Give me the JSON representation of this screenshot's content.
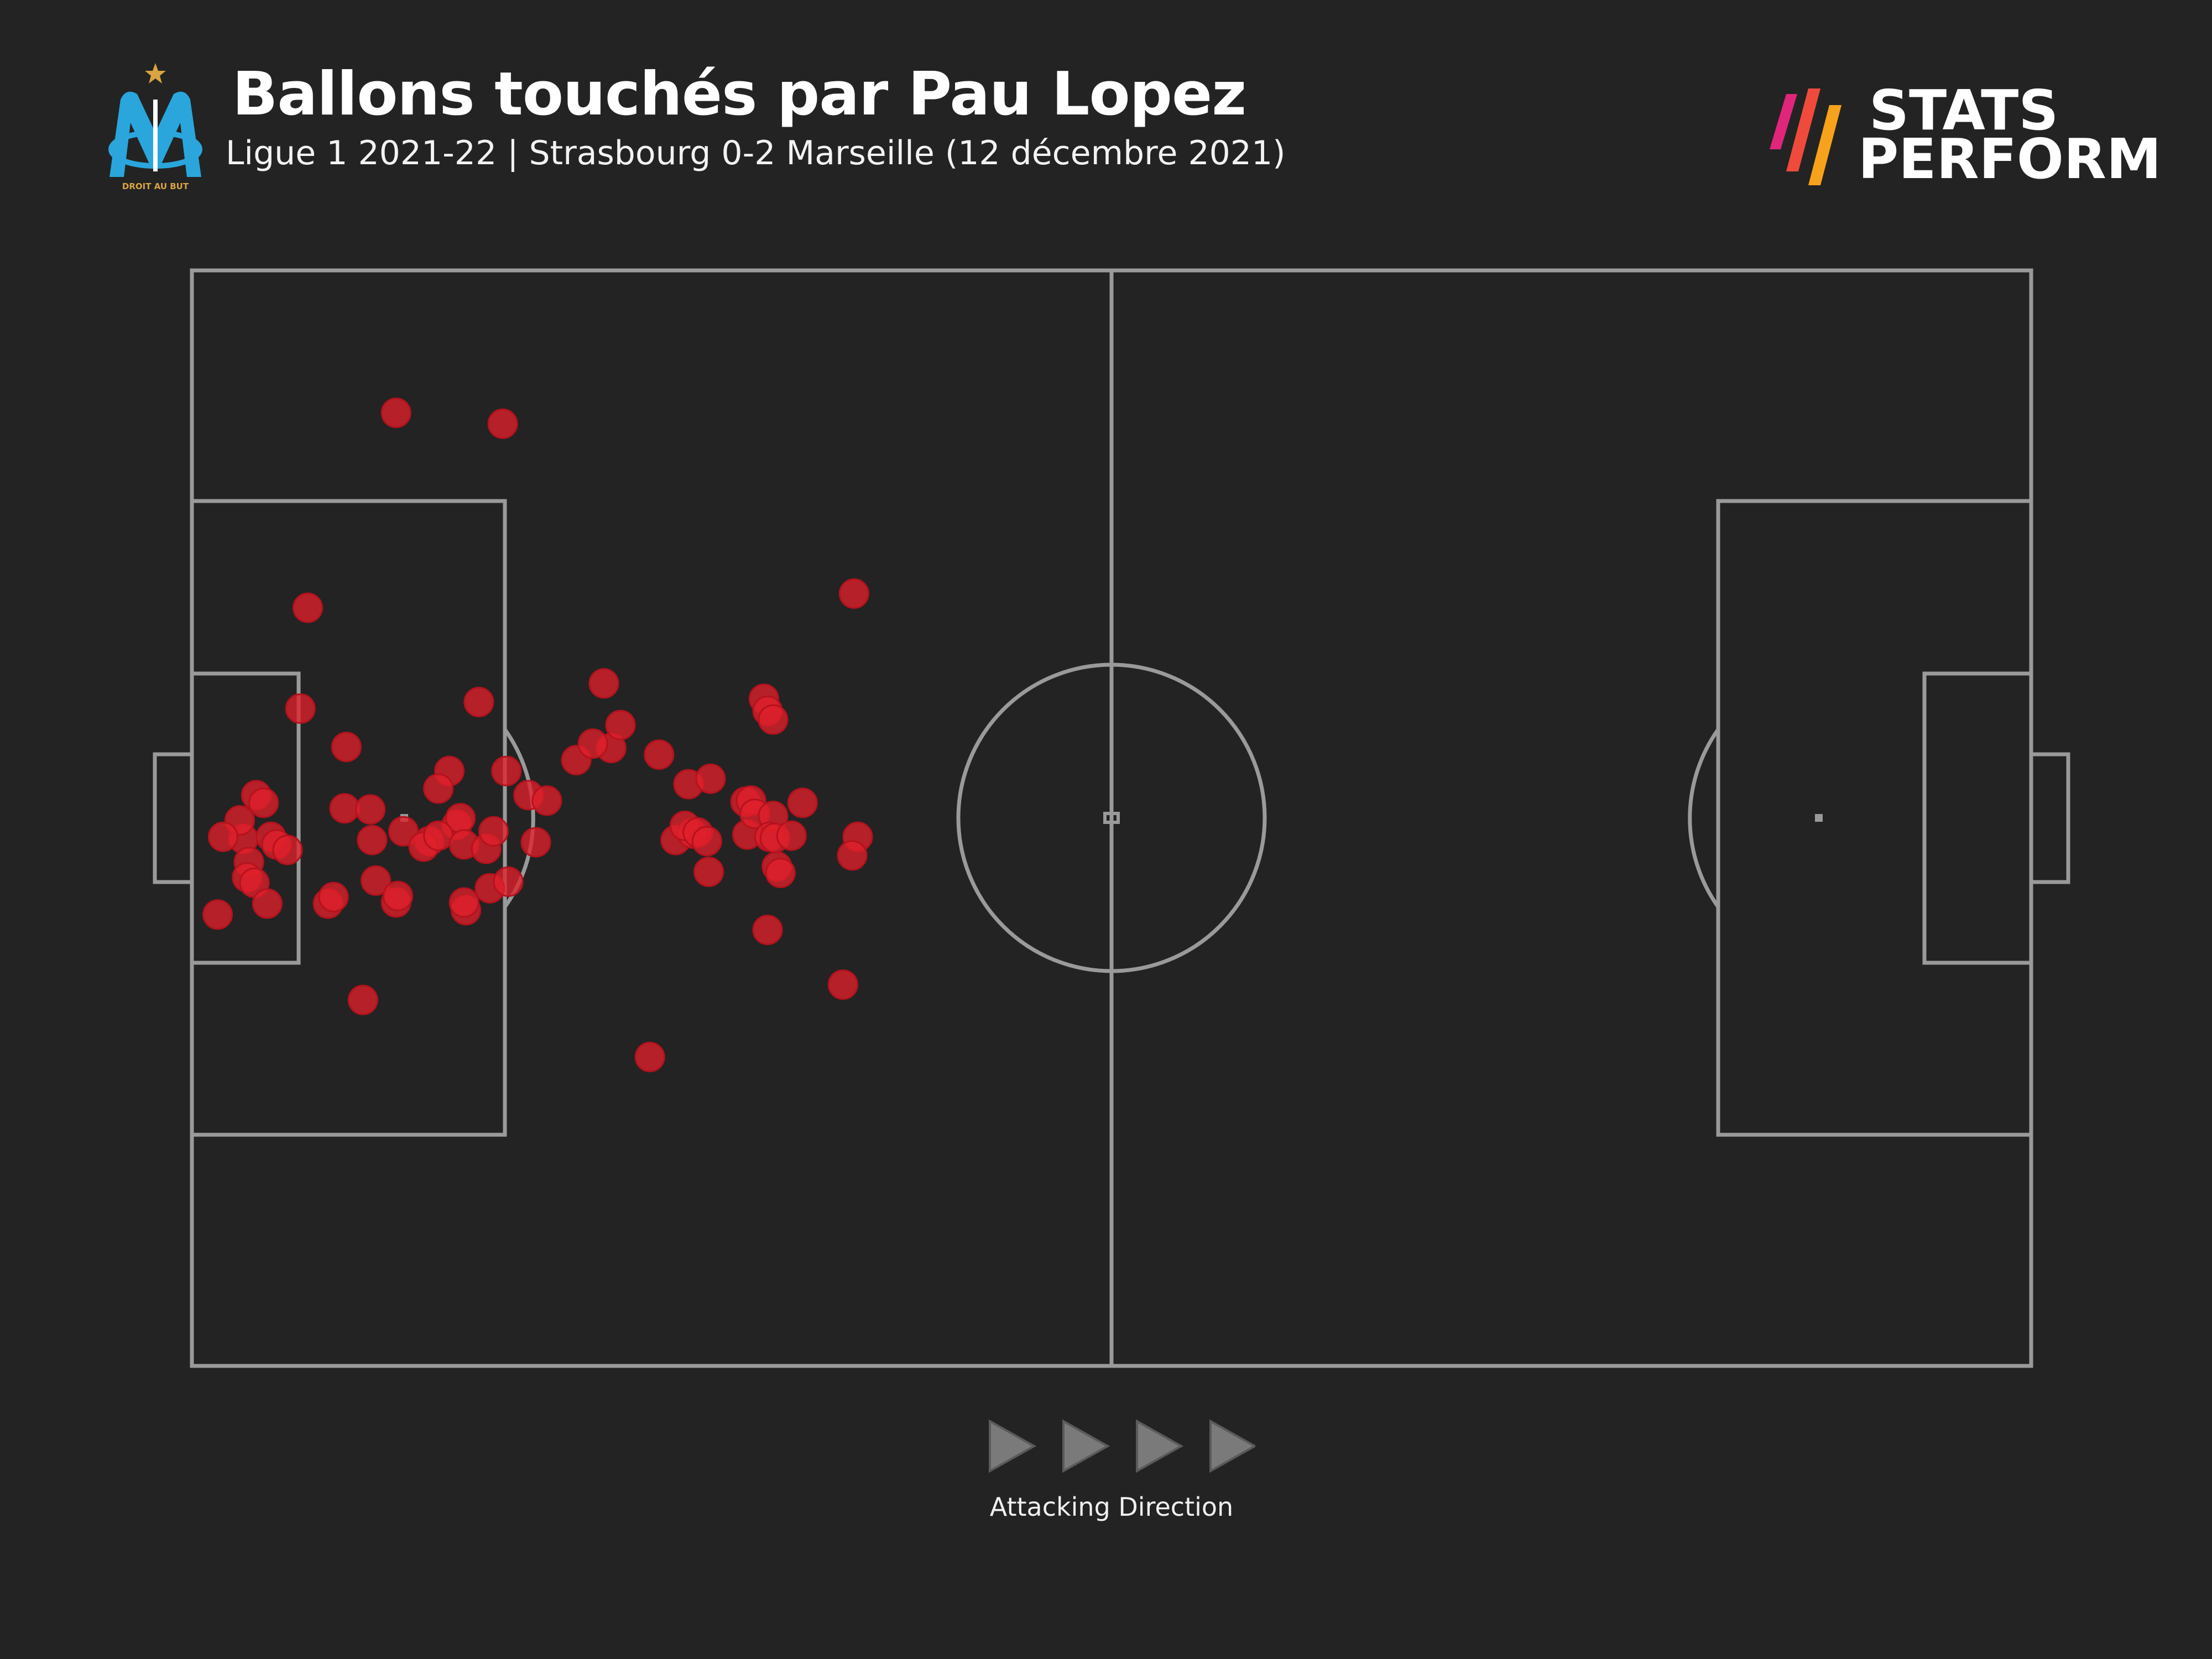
{
  "header": {
    "title": "Ballons touchés par Pau Lopez",
    "subtitle": "Ligue 1 2021-22 | Strasbourg 0-2 Marseille (12 décembre 2021)",
    "club_logo_text": "DROIT AU BUT",
    "club_logo_icon": "olympique-marseille-crest-icon"
  },
  "brand": {
    "line1": "STATS",
    "line2": "PERFORM",
    "mark_icon": "stats-perform-stripes-icon",
    "stripe_colors": [
      "#e0257a",
      "#f04a3c",
      "#f7a21b"
    ]
  },
  "footer": {
    "direction_label": "Attacking Direction",
    "arrow_icon": "play-triangle-icon",
    "arrow_count": 4
  },
  "colors": {
    "background": "#232323",
    "pitch_lines": "#9a9a9a",
    "touch_marker": "#e0202c",
    "arrow": "#7a7a7a"
  },
  "chart_data": {
    "type": "scatter",
    "title": "Ballons touchés par Pau Lopez",
    "subtitle": "Ligue 1 2021-22 | Strasbourg 0-2 Marseille (12 décembre 2021)",
    "pitch": {
      "length": 100,
      "width": 100,
      "attacking_direction": "left-to-right",
      "grid": false
    },
    "series": [
      {
        "marker_color": "#e0202c",
        "points": [
          {
            "x": 11.1,
            "y": 87.0
          },
          {
            "x": 16.9,
            "y": 86.0
          },
          {
            "x": 6.3,
            "y": 69.2
          },
          {
            "x": 5.9,
            "y": 60.0
          },
          {
            "x": 15.6,
            "y": 60.6
          },
          {
            "x": 8.4,
            "y": 56.5
          },
          {
            "x": 14.0,
            "y": 54.3
          },
          {
            "x": 17.1,
            "y": 54.3
          },
          {
            "x": 20.9,
            "y": 55.3
          },
          {
            "x": 22.8,
            "y": 56.4
          },
          {
            "x": 18.3,
            "y": 52.1
          },
          {
            "x": 19.3,
            "y": 51.6
          },
          {
            "x": 3.5,
            "y": 52.1
          },
          {
            "x": 3.9,
            "y": 51.4
          },
          {
            "x": 8.3,
            "y": 50.9
          },
          {
            "x": 9.7,
            "y": 50.8
          },
          {
            "x": 13.4,
            "y": 52.7
          },
          {
            "x": 14.4,
            "y": 49.4
          },
          {
            "x": 14.6,
            "y": 50.0
          },
          {
            "x": 2.8,
            "y": 48.1
          },
          {
            "x": 2.6,
            "y": 49.8
          },
          {
            "x": 3.1,
            "y": 46.0
          },
          {
            "x": 4.3,
            "y": 48.3
          },
          {
            "x": 4.6,
            "y": 47.6
          },
          {
            "x": 5.2,
            "y": 47.1
          },
          {
            "x": 9.8,
            "y": 48.0
          },
          {
            "x": 11.5,
            "y": 48.8
          },
          {
            "x": 12.9,
            "y": 47.9
          },
          {
            "x": 12.6,
            "y": 47.4
          },
          {
            "x": 13.4,
            "y": 48.4
          },
          {
            "x": 14.8,
            "y": 47.6
          },
          {
            "x": 16.0,
            "y": 47.2
          },
          {
            "x": 16.4,
            "y": 48.8
          },
          {
            "x": 1.7,
            "y": 48.3
          },
          {
            "x": 3.0,
            "y": 44.6
          },
          {
            "x": 3.4,
            "y": 44.1
          },
          {
            "x": 10.0,
            "y": 44.3
          },
          {
            "x": 16.2,
            "y": 43.6
          },
          {
            "x": 17.2,
            "y": 44.2
          },
          {
            "x": 18.7,
            "y": 47.8
          },
          {
            "x": 1.4,
            "y": 41.2
          },
          {
            "x": 4.1,
            "y": 42.2
          },
          {
            "x": 7.4,
            "y": 42.2
          },
          {
            "x": 7.7,
            "y": 42.8
          },
          {
            "x": 11.1,
            "y": 42.3
          },
          {
            "x": 11.2,
            "y": 42.9
          },
          {
            "x": 14.9,
            "y": 41.6
          },
          {
            "x": 14.8,
            "y": 42.3
          },
          {
            "x": 9.3,
            "y": 33.4
          },
          {
            "x": 22.4,
            "y": 62.3
          },
          {
            "x": 23.3,
            "y": 58.5
          },
          {
            "x": 21.8,
            "y": 56.8
          },
          {
            "x": 27.0,
            "y": 53.1
          },
          {
            "x": 28.2,
            "y": 53.6
          },
          {
            "x": 25.4,
            "y": 55.8
          },
          {
            "x": 26.3,
            "y": 48.0
          },
          {
            "x": 27.2,
            "y": 48.6
          },
          {
            "x": 26.8,
            "y": 49.3
          },
          {
            "x": 27.5,
            "y": 48.7
          },
          {
            "x": 28.0,
            "y": 47.9
          },
          {
            "x": 28.1,
            "y": 45.1
          },
          {
            "x": 30.2,
            "y": 48.5
          },
          {
            "x": 31.1,
            "y": 60.9
          },
          {
            "x": 31.3,
            "y": 59.8
          },
          {
            "x": 31.6,
            "y": 59.0
          },
          {
            "x": 30.1,
            "y": 51.5
          },
          {
            "x": 30.4,
            "y": 51.6
          },
          {
            "x": 30.6,
            "y": 50.4
          },
          {
            "x": 31.6,
            "y": 50.2
          },
          {
            "x": 33.2,
            "y": 51.4
          },
          {
            "x": 31.4,
            "y": 48.3
          },
          {
            "x": 31.7,
            "y": 48.2
          },
          {
            "x": 32.6,
            "y": 48.4
          },
          {
            "x": 36.2,
            "y": 48.3
          },
          {
            "x": 31.8,
            "y": 45.6
          },
          {
            "x": 32.0,
            "y": 45.0
          },
          {
            "x": 35.9,
            "y": 46.6
          },
          {
            "x": 36.0,
            "y": 70.5
          },
          {
            "x": 31.3,
            "y": 39.8
          },
          {
            "x": 35.4,
            "y": 34.8
          },
          {
            "x": 24.9,
            "y": 28.2
          }
        ]
      }
    ]
  }
}
